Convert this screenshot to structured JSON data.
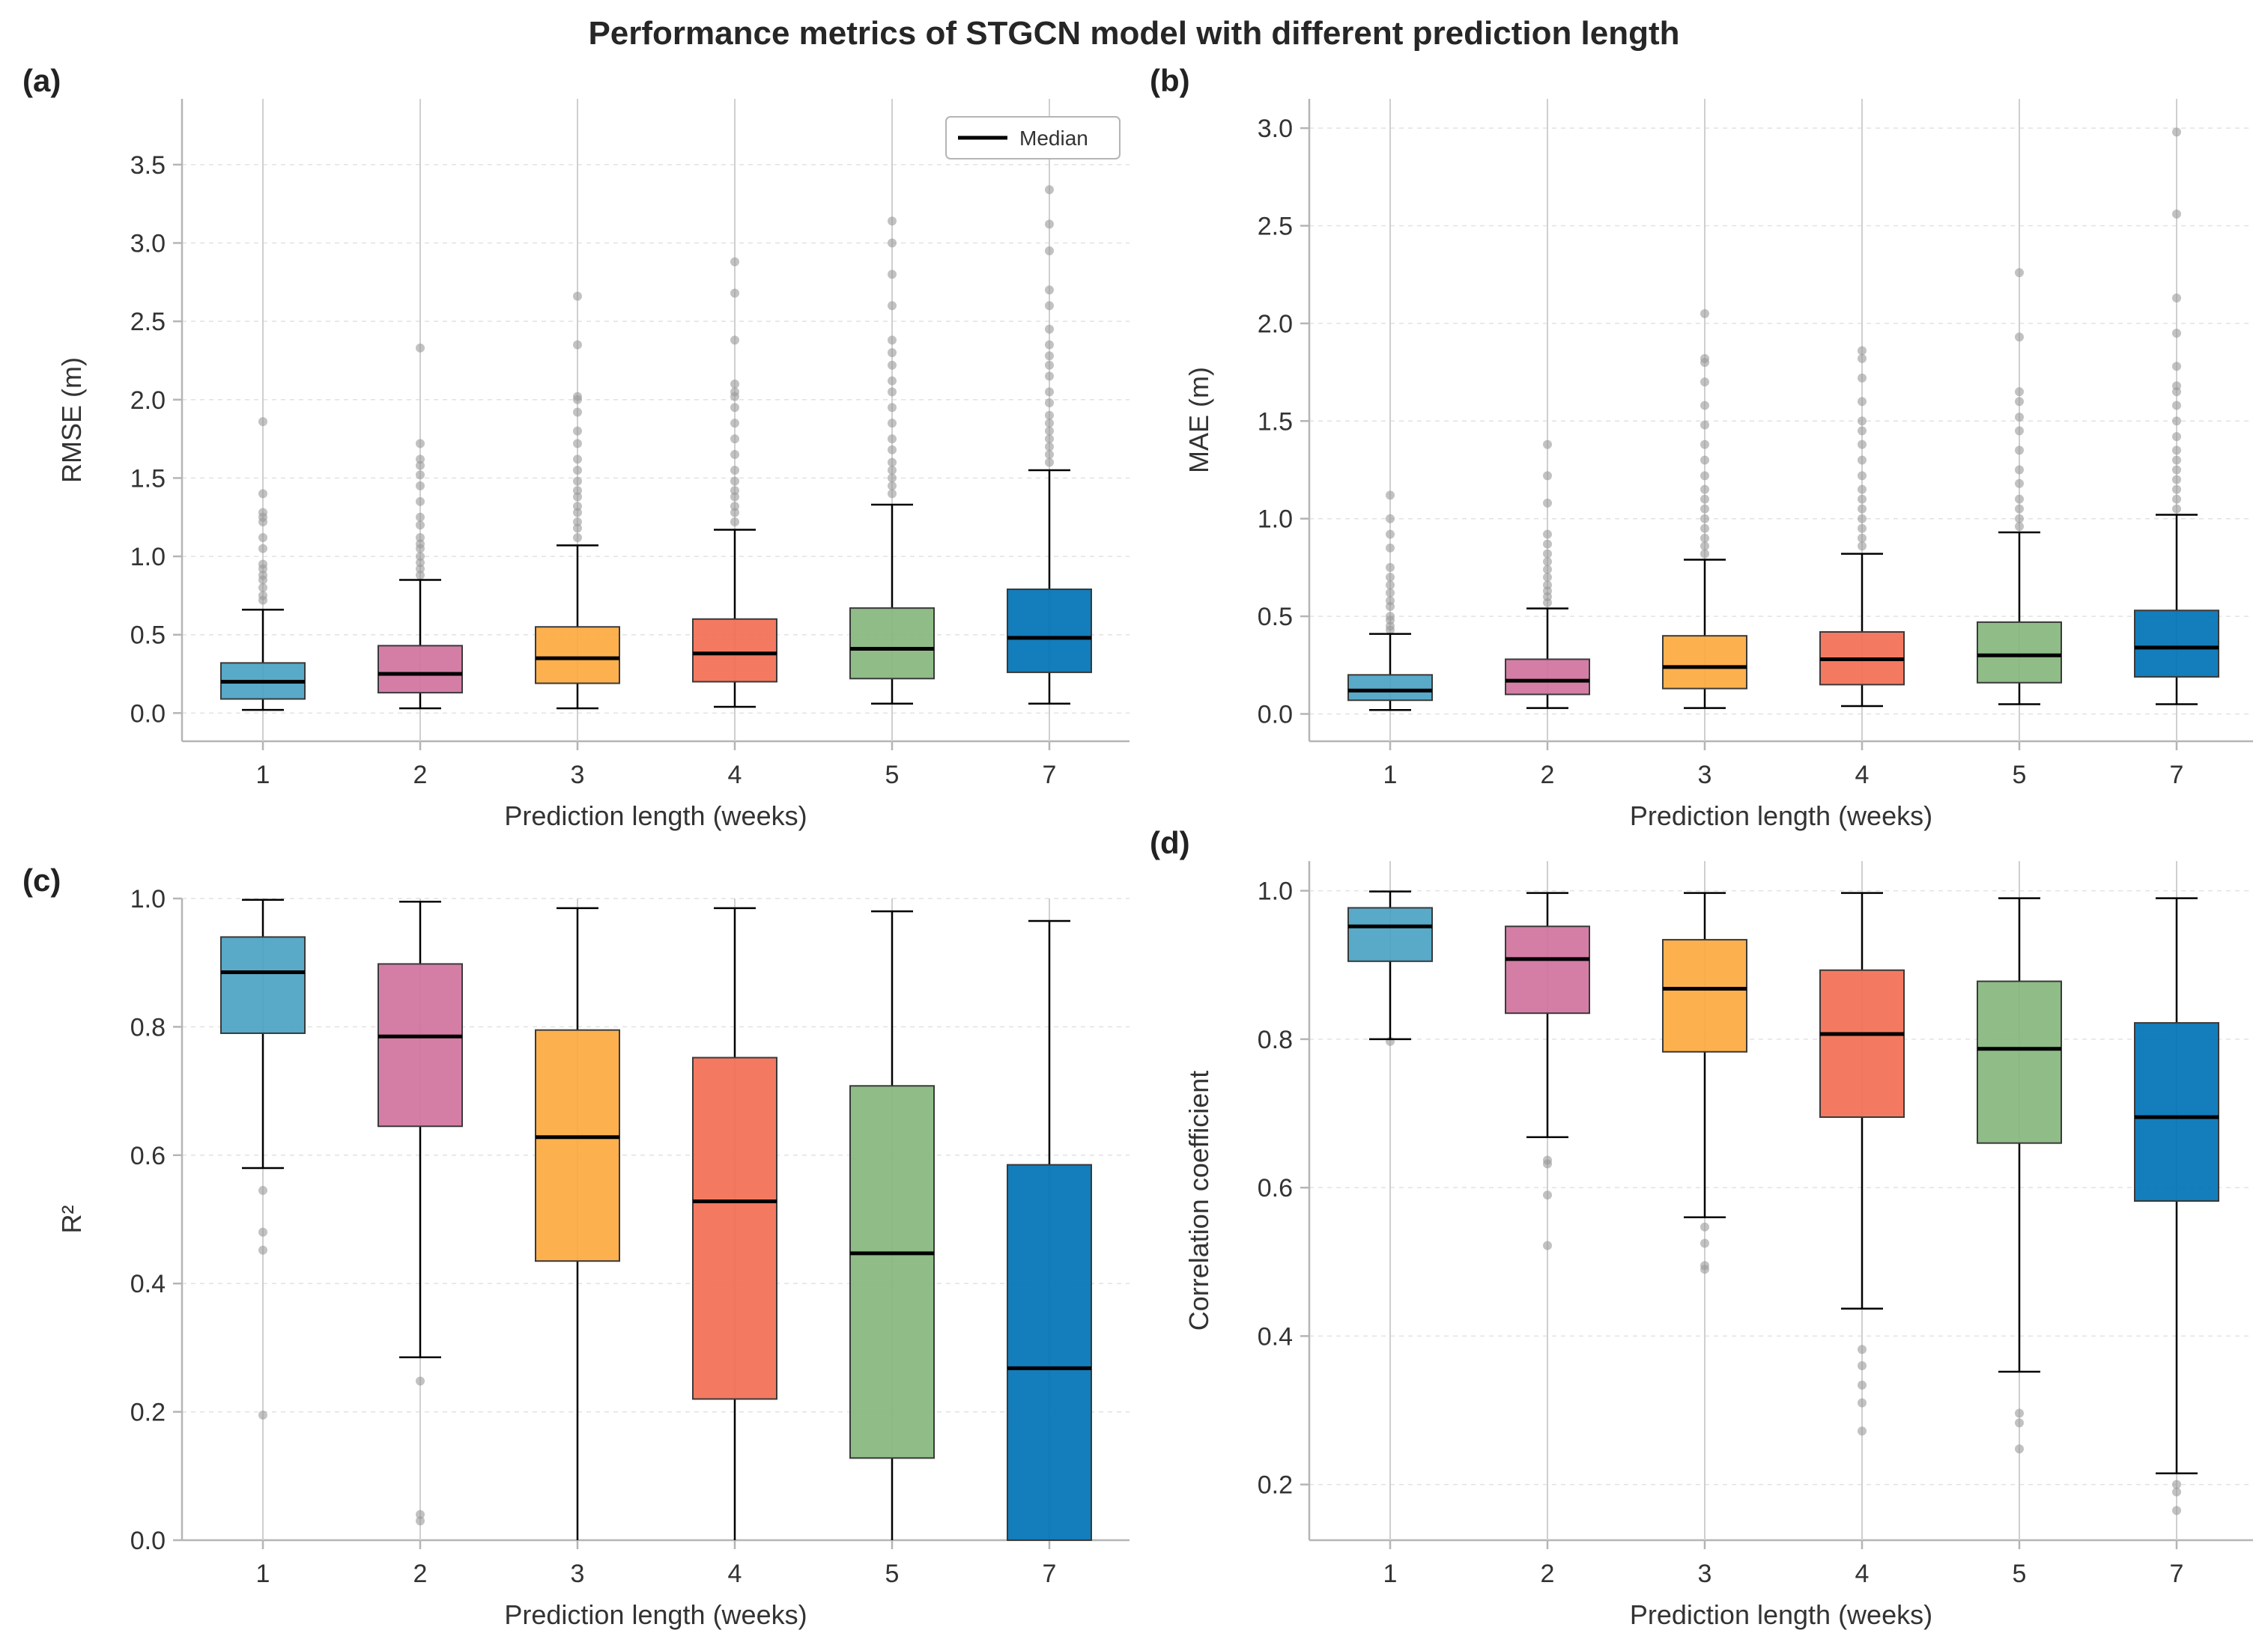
{
  "figure": {
    "title": "Performance metrics of STGCN model with different prediction length"
  },
  "colors": [
    "#4aa3c3",
    "#d0739e",
    "#fdaa3f",
    "#f26f54",
    "#86b67d",
    "#0072b5"
  ],
  "legend": {
    "label": "Median"
  },
  "chart_data": [
    {
      "type": "box",
      "panel_label": "(a)",
      "title": "",
      "xlabel": "Prediction length (weeks)",
      "ylabel": "RMSE (m)",
      "categories": [
        "1",
        "2",
        "3",
        "4",
        "5",
        "7"
      ],
      "ylim": [
        -0.18,
        3.92
      ],
      "yticks": [
        0.0,
        0.5,
        1.0,
        1.5,
        2.0,
        2.5,
        3.0,
        3.5
      ],
      "ytick_labels": [
        "0.0",
        "0.5",
        "1.0",
        "1.5",
        "2.0",
        "2.5",
        "3.0",
        "3.5"
      ],
      "legend": true,
      "boxes": [
        {
          "whislo": 0.02,
          "q1": 0.09,
          "med": 0.2,
          "q3": 0.32,
          "whishi": 0.66,
          "fliers": [
            0.72,
            0.75,
            0.8,
            0.85,
            0.88,
            0.92,
            0.95,
            1.05,
            1.12,
            1.22,
            1.25,
            1.28,
            1.4,
            1.86
          ]
        },
        {
          "whislo": 0.03,
          "q1": 0.13,
          "med": 0.25,
          "q3": 0.43,
          "whishi": 0.85,
          "fliers": [
            0.88,
            0.92,
            0.96,
            1.0,
            1.05,
            1.08,
            1.12,
            1.2,
            1.25,
            1.35,
            1.45,
            1.52,
            1.58,
            1.62,
            1.72,
            2.33
          ]
        },
        {
          "whislo": 0.03,
          "q1": 0.19,
          "med": 0.35,
          "q3": 0.55,
          "whishi": 1.07,
          "fliers": [
            1.12,
            1.18,
            1.22,
            1.28,
            1.32,
            1.38,
            1.42,
            1.48,
            1.55,
            1.62,
            1.72,
            1.8,
            1.92,
            2.0,
            2.02,
            2.35,
            2.66
          ]
        },
        {
          "whislo": 0.04,
          "q1": 0.2,
          "med": 0.38,
          "q3": 0.6,
          "whishi": 1.17,
          "fliers": [
            1.22,
            1.28,
            1.32,
            1.38,
            1.42,
            1.48,
            1.55,
            1.65,
            1.75,
            1.85,
            1.95,
            2.02,
            2.05,
            2.1,
            2.38,
            2.68,
            2.88
          ]
        },
        {
          "whislo": 0.06,
          "q1": 0.22,
          "med": 0.41,
          "q3": 0.67,
          "whishi": 1.33,
          "fliers": [
            1.4,
            1.45,
            1.5,
            1.55,
            1.6,
            1.68,
            1.75,
            1.85,
            1.95,
            2.05,
            2.12,
            2.22,
            2.3,
            2.38,
            2.6,
            2.8,
            3.0,
            3.14
          ]
        },
        {
          "whislo": 0.06,
          "q1": 0.26,
          "med": 0.48,
          "q3": 0.79,
          "whishi": 1.55,
          "fliers": [
            1.6,
            1.65,
            1.7,
            1.75,
            1.8,
            1.85,
            1.9,
            1.98,
            2.05,
            2.15,
            2.22,
            2.28,
            2.35,
            2.45,
            2.6,
            2.7,
            2.95,
            3.12,
            3.34
          ]
        }
      ]
    },
    {
      "type": "box",
      "panel_label": "(b)",
      "title": "",
      "xlabel": "Prediction length (weeks)",
      "ylabel": "MAE (m)",
      "categories": [
        "1",
        "2",
        "3",
        "4",
        "5",
        "7"
      ],
      "ylim": [
        -0.14,
        3.15
      ],
      "yticks": [
        0.0,
        0.5,
        1.0,
        1.5,
        2.0,
        2.5,
        3.0
      ],
      "ytick_labels": [
        "0.0",
        "0.5",
        "1.0",
        "1.5",
        "2.0",
        "2.5",
        "3.0"
      ],
      "legend": false,
      "boxes": [
        {
          "whislo": 0.02,
          "q1": 0.07,
          "med": 0.12,
          "q3": 0.2,
          "whishi": 0.41,
          "fliers": [
            0.43,
            0.45,
            0.48,
            0.5,
            0.55,
            0.58,
            0.62,
            0.66,
            0.7,
            0.75,
            0.85,
            0.92,
            1.0,
            1.12
          ]
        },
        {
          "whislo": 0.03,
          "q1": 0.1,
          "med": 0.17,
          "q3": 0.28,
          "whishi": 0.54,
          "fliers": [
            0.57,
            0.6,
            0.63,
            0.66,
            0.7,
            0.74,
            0.78,
            0.82,
            0.87,
            0.92,
            1.08,
            1.22,
            1.38
          ]
        },
        {
          "whislo": 0.03,
          "q1": 0.13,
          "med": 0.24,
          "q3": 0.4,
          "whishi": 0.79,
          "fliers": [
            0.82,
            0.86,
            0.9,
            0.95,
            1.0,
            1.05,
            1.1,
            1.15,
            1.22,
            1.3,
            1.38,
            1.48,
            1.58,
            1.7,
            1.8,
            1.82,
            2.05
          ]
        },
        {
          "whislo": 0.04,
          "q1": 0.15,
          "med": 0.28,
          "q3": 0.42,
          "whishi": 0.82,
          "fliers": [
            0.86,
            0.9,
            0.95,
            1.0,
            1.05,
            1.1,
            1.15,
            1.22,
            1.3,
            1.38,
            1.45,
            1.5,
            1.6,
            1.72,
            1.82,
            1.86
          ]
        },
        {
          "whislo": 0.05,
          "q1": 0.16,
          "med": 0.3,
          "q3": 0.47,
          "whishi": 0.93,
          "fliers": [
            0.96,
            1.0,
            1.05,
            1.1,
            1.18,
            1.25,
            1.35,
            1.45,
            1.52,
            1.6,
            1.65,
            1.93,
            2.26
          ]
        },
        {
          "whislo": 0.05,
          "q1": 0.19,
          "med": 0.34,
          "q3": 0.53,
          "whishi": 1.02,
          "fliers": [
            1.05,
            1.1,
            1.15,
            1.2,
            1.25,
            1.3,
            1.35,
            1.42,
            1.5,
            1.58,
            1.65,
            1.68,
            1.78,
            1.95,
            2.13,
            2.56,
            2.98
          ]
        }
      ]
    },
    {
      "type": "box",
      "panel_label": "(c)",
      "title": "",
      "xlabel": "Prediction length (weeks)",
      "ylabel": "R²",
      "categories": [
        "1",
        "2",
        "3",
        "4",
        "5",
        "7"
      ],
      "ylim": [
        0.0,
        1.0
      ],
      "yticks": [
        0.0,
        0.2,
        0.4,
        0.6,
        0.8,
        1.0
      ],
      "ytick_labels": [
        "0.0",
        "0.2",
        "0.4",
        "0.6",
        "0.8",
        "1.0"
      ],
      "legend": false,
      "boxes": [
        {
          "whislo": 0.58,
          "q1": 0.79,
          "med": 0.885,
          "q3": 0.94,
          "whishi": 0.998,
          "fliers": [
            0.545,
            0.48,
            0.452,
            0.195
          ]
        },
        {
          "whislo": 0.285,
          "q1": 0.645,
          "med": 0.785,
          "q3": 0.898,
          "whishi": 0.995,
          "fliers": [
            0.248,
            0.04,
            0.03
          ]
        },
        {
          "whislo": 0.0,
          "q1": 0.435,
          "med": 0.628,
          "q3": 0.795,
          "whishi": 0.985,
          "fliers": []
        },
        {
          "whislo": 0.0,
          "q1": 0.22,
          "med": 0.528,
          "q3": 0.752,
          "whishi": 0.985,
          "fliers": []
        },
        {
          "whislo": 0.0,
          "q1": 0.128,
          "med": 0.447,
          "q3": 0.708,
          "whishi": 0.98,
          "fliers": []
        },
        {
          "whislo": 0.0,
          "q1": 0.0,
          "med": 0.268,
          "q3": 0.585,
          "whishi": 0.965,
          "fliers": []
        }
      ]
    },
    {
      "type": "box",
      "panel_label": "(d)",
      "title": "",
      "xlabel": "Prediction length (weeks)",
      "ylabel": "Correlation coefficient",
      "categories": [
        "1",
        "2",
        "3",
        "4",
        "5",
        "7"
      ],
      "ylim": [
        0.125,
        1.04
      ],
      "yticks": [
        0.2,
        0.4,
        0.6,
        0.8,
        1.0
      ],
      "ytick_labels": [
        "0.2",
        "0.4",
        "0.6",
        "0.8",
        "1.0"
      ],
      "legend": false,
      "boxes": [
        {
          "whislo": 0.8,
          "q1": 0.905,
          "med": 0.952,
          "q3": 0.977,
          "whishi": 0.999,
          "fliers": [
            0.797
          ]
        },
        {
          "whislo": 0.668,
          "q1": 0.835,
          "med": 0.908,
          "q3": 0.952,
          "whishi": 0.997,
          "fliers": [
            0.637,
            0.632,
            0.59,
            0.522
          ]
        },
        {
          "whislo": 0.56,
          "q1": 0.783,
          "med": 0.868,
          "q3": 0.934,
          "whishi": 0.997,
          "fliers": [
            0.547,
            0.525,
            0.495,
            0.49
          ]
        },
        {
          "whislo": 0.437,
          "q1": 0.695,
          "med": 0.807,
          "q3": 0.893,
          "whishi": 0.997,
          "fliers": [
            0.382,
            0.36,
            0.334,
            0.31,
            0.272
          ]
        },
        {
          "whislo": 0.352,
          "q1": 0.66,
          "med": 0.787,
          "q3": 0.878,
          "whishi": 0.99,
          "fliers": [
            0.296,
            0.283,
            0.248
          ]
        },
        {
          "whislo": 0.215,
          "q1": 0.582,
          "med": 0.695,
          "q3": 0.822,
          "whishi": 0.99,
          "fliers": [
            0.2,
            0.19,
            0.165
          ]
        }
      ]
    }
  ]
}
